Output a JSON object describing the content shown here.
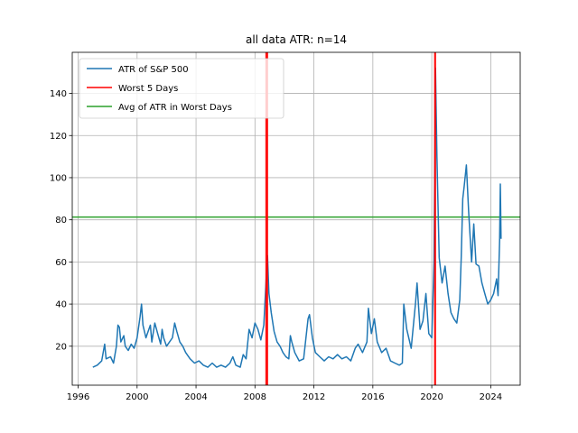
{
  "chart_data": {
    "type": "line",
    "title": "all data ATR: n=14",
    "xlabel": "",
    "ylabel": "",
    "xlim": [
      1995.6,
      2026.0
    ],
    "ylim": [
      1.5,
      159.5
    ],
    "xticks": [
      1996,
      2000,
      2004,
      2008,
      2012,
      2016,
      2020,
      2024
    ],
    "yticks": [
      20,
      40,
      60,
      80,
      100,
      120,
      140
    ],
    "grid": true,
    "legend_position": "top-left",
    "series": [
      {
        "name": "ATR of S&P 500",
        "color": "#1f77b4",
        "points": [
          [
            1997.0,
            10
          ],
          [
            1997.3,
            11
          ],
          [
            1997.6,
            13
          ],
          [
            1997.8,
            21
          ],
          [
            1997.9,
            14
          ],
          [
            1998.2,
            15
          ],
          [
            1998.4,
            12
          ],
          [
            1998.6,
            20
          ],
          [
            1998.7,
            30
          ],
          [
            1998.8,
            29
          ],
          [
            1998.9,
            22
          ],
          [
            1999.1,
            25
          ],
          [
            1999.2,
            20
          ],
          [
            1999.4,
            18
          ],
          [
            1999.6,
            21
          ],
          [
            1999.8,
            19
          ],
          [
            2000.0,
            24
          ],
          [
            2000.2,
            34
          ],
          [
            2000.3,
            40
          ],
          [
            2000.4,
            30
          ],
          [
            2000.6,
            24
          ],
          [
            2000.7,
            26
          ],
          [
            2000.9,
            30
          ],
          [
            2001.0,
            22
          ],
          [
            2001.2,
            31
          ],
          [
            2001.4,
            26
          ],
          [
            2001.6,
            21
          ],
          [
            2001.7,
            28
          ],
          [
            2001.8,
            24
          ],
          [
            2002.0,
            20
          ],
          [
            2002.2,
            22
          ],
          [
            2002.4,
            24
          ],
          [
            2002.55,
            31
          ],
          [
            2002.7,
            27
          ],
          [
            2002.9,
            22
          ],
          [
            2003.1,
            20
          ],
          [
            2003.3,
            17
          ],
          [
            2003.6,
            14
          ],
          [
            2003.9,
            12
          ],
          [
            2004.2,
            13
          ],
          [
            2004.5,
            11
          ],
          [
            2004.8,
            10
          ],
          [
            2005.1,
            12
          ],
          [
            2005.4,
            10
          ],
          [
            2005.7,
            11
          ],
          [
            2006.0,
            10
          ],
          [
            2006.3,
            12
          ],
          [
            2006.5,
            15
          ],
          [
            2006.7,
            11
          ],
          [
            2007.0,
            10
          ],
          [
            2007.2,
            16
          ],
          [
            2007.4,
            14
          ],
          [
            2007.6,
            28
          ],
          [
            2007.8,
            24
          ],
          [
            2008.0,
            31
          ],
          [
            2008.2,
            28
          ],
          [
            2008.4,
            23
          ],
          [
            2008.6,
            30
          ],
          [
            2008.75,
            51
          ],
          [
            2008.85,
            63
          ],
          [
            2008.95,
            45
          ],
          [
            2009.1,
            36
          ],
          [
            2009.3,
            27
          ],
          [
            2009.5,
            22
          ],
          [
            2009.7,
            20
          ],
          [
            2009.9,
            17
          ],
          [
            2010.1,
            15
          ],
          [
            2010.3,
            14
          ],
          [
            2010.4,
            25
          ],
          [
            2010.5,
            22
          ],
          [
            2010.7,
            17
          ],
          [
            2011.0,
            13
          ],
          [
            2011.3,
            14
          ],
          [
            2011.6,
            33
          ],
          [
            2011.7,
            35
          ],
          [
            2011.9,
            24
          ],
          [
            2012.1,
            17
          ],
          [
            2012.4,
            15
          ],
          [
            2012.7,
            13
          ],
          [
            2013.0,
            15
          ],
          [
            2013.3,
            14
          ],
          [
            2013.6,
            16
          ],
          [
            2013.9,
            14
          ],
          [
            2014.2,
            15
          ],
          [
            2014.5,
            13
          ],
          [
            2014.8,
            19
          ],
          [
            2015.0,
            21
          ],
          [
            2015.3,
            17
          ],
          [
            2015.6,
            22
          ],
          [
            2015.7,
            38
          ],
          [
            2015.9,
            26
          ],
          [
            2016.1,
            33
          ],
          [
            2016.3,
            22
          ],
          [
            2016.6,
            17
          ],
          [
            2016.9,
            19
          ],
          [
            2017.2,
            13
          ],
          [
            2017.5,
            12
          ],
          [
            2017.8,
            11
          ],
          [
            2018.0,
            12
          ],
          [
            2018.1,
            40
          ],
          [
            2018.3,
            28
          ],
          [
            2018.6,
            19
          ],
          [
            2018.9,
            41
          ],
          [
            2019.0,
            50
          ],
          [
            2019.2,
            28
          ],
          [
            2019.4,
            32
          ],
          [
            2019.6,
            45
          ],
          [
            2019.8,
            26
          ],
          [
            2020.0,
            24
          ],
          [
            2020.15,
            60
          ],
          [
            2020.25,
            152
          ],
          [
            2020.35,
            110
          ],
          [
            2020.5,
            62
          ],
          [
            2020.7,
            50
          ],
          [
            2020.9,
            58
          ],
          [
            2021.1,
            45
          ],
          [
            2021.3,
            36
          ],
          [
            2021.5,
            33
          ],
          [
            2021.7,
            31
          ],
          [
            2021.9,
            42
          ],
          [
            2022.0,
            62
          ],
          [
            2022.1,
            90
          ],
          [
            2022.2,
            96
          ],
          [
            2022.35,
            106
          ],
          [
            2022.5,
            84
          ],
          [
            2022.7,
            60
          ],
          [
            2022.85,
            78
          ],
          [
            2023.0,
            59
          ],
          [
            2023.2,
            58
          ],
          [
            2023.4,
            50
          ],
          [
            2023.6,
            45
          ],
          [
            2023.8,
            40
          ],
          [
            2024.0,
            42
          ],
          [
            2024.2,
            45
          ],
          [
            2024.4,
            52
          ],
          [
            2024.5,
            44
          ],
          [
            2024.6,
            70
          ],
          [
            2024.65,
            97
          ],
          [
            2024.7,
            71
          ]
        ]
      },
      {
        "name": "Worst 5 Days",
        "color": "#ff0000",
        "type": "vline",
        "x": [
          2008.75,
          2008.8,
          2008.85,
          2020.2,
          2020.25
        ]
      },
      {
        "name": "Avg of ATR in Worst Days",
        "color": "#2ca02c",
        "type": "hline",
        "y": 81.3
      }
    ]
  }
}
